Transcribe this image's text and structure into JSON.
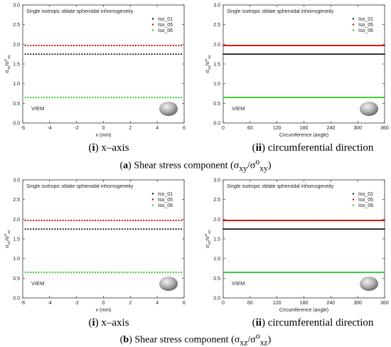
{
  "captions": {
    "a": {
      "label": "a",
      "text": " Shear stress component (σ",
      "sub1": "xy",
      "mid": "/σ",
      "sup": "o",
      "sub2": "xy",
      "end": ")"
    },
    "b": {
      "label": "b",
      "text": " Shear stress component (σ",
      "sub1": "xz",
      "mid": "/σ",
      "sup": "o",
      "sub2": "xz",
      "end": ")"
    },
    "sub_i": {
      "label": "i",
      "text": " x–axis"
    },
    "sub_ii": {
      "label": "ii",
      "text": " circumferential direction"
    }
  },
  "chart_data": [
    {
      "id": "a-i",
      "type": "scatter",
      "title": "Single isotropic oblate spheroidal inhomogeneity",
      "xlabel": "x (mm)",
      "ylabel_main": "σ",
      "ylabel_sub": "xy",
      "ylabel_mid": "/σ",
      "ylabel_sup": "o",
      "ylabel_sub2": "xy",
      "xlim": [
        -6,
        6
      ],
      "ylim": [
        0.0,
        3.0
      ],
      "xticks": [
        "-6",
        "-4",
        "-2",
        "0",
        "2",
        "4",
        "6"
      ],
      "yticks": [
        "0.0",
        "0.5",
        "1.0",
        "1.5",
        "2.0",
        "2.5",
        "3.0"
      ],
      "annotation": "VIEM",
      "legend_position": "top-right",
      "series": [
        {
          "name": "Iso_01",
          "color": "#1a1a1a",
          "y": 1.75,
          "x_range": [
            -5.8,
            5.8
          ],
          "count": 59
        },
        {
          "name": "Iso_05",
          "color": "#d00000",
          "y": 1.97,
          "x_range": [
            -5.8,
            5.8
          ],
          "count": 59
        },
        {
          "name": "Iso_06",
          "color": "#22cc22",
          "y": 0.65,
          "x_range": [
            -5.8,
            5.8
          ],
          "count": 59
        }
      ]
    },
    {
      "id": "a-ii",
      "type": "scatter",
      "title": "Single isotropic oblate spheroidal inhomogeneity",
      "xlabel": "Circumference (angle)",
      "ylabel_main": "σ",
      "ylabel_sub": "xy",
      "ylabel_mid": "/σ",
      "ylabel_sup": "o",
      "ylabel_sub2": "xy",
      "xlim": [
        0,
        360
      ],
      "ylim": [
        0.0,
        3.0
      ],
      "xticks": [
        "0",
        "60",
        "120",
        "180",
        "240",
        "300",
        "360"
      ],
      "yticks": [
        "0.0",
        "0.5",
        "1.0",
        "1.5",
        "2.0",
        "2.5",
        "3.0"
      ],
      "annotation": "VIEM",
      "legend_position": "top-right",
      "series": [
        {
          "name": "Iso_01",
          "color": "#1a1a1a",
          "y": 1.75,
          "x_range": [
            0,
            360
          ],
          "count": 361
        },
        {
          "name": "Iso_05",
          "color": "#d00000",
          "y": 1.97,
          "x_range": [
            0,
            360
          ],
          "count": 361
        },
        {
          "name": "Iso_06",
          "color": "#22cc22",
          "y": 0.65,
          "x_range": [
            0,
            360
          ],
          "count": 361
        }
      ]
    },
    {
      "id": "b-i",
      "type": "scatter",
      "title": "Single isotropic oblate spheroidal inhomogeneity",
      "xlabel": "x (mm)",
      "ylabel_main": "σ",
      "ylabel_sub": "xz",
      "ylabel_mid": "/σ",
      "ylabel_sup": "o",
      "ylabel_sub2": "xz",
      "xlim": [
        -6,
        6
      ],
      "ylim": [
        0.0,
        3.0
      ],
      "xticks": [
        "-6",
        "-4",
        "-2",
        "0",
        "2",
        "4",
        "6"
      ],
      "yticks": [
        "0.0",
        "0.5",
        "1.0",
        "1.5",
        "2.0",
        "2.5",
        "3.0"
      ],
      "annotation": "VIEM",
      "legend_position": "top-right",
      "series": [
        {
          "name": "Iso_01",
          "color": "#1a1a1a",
          "y": 1.75,
          "x_range": [
            -5.8,
            5.8
          ],
          "count": 59
        },
        {
          "name": "Iso_05",
          "color": "#d00000",
          "y": 1.97,
          "x_range": [
            -5.8,
            5.8
          ],
          "count": 59
        },
        {
          "name": "Iso_06",
          "color": "#22cc22",
          "y": 0.65,
          "x_range": [
            -5.8,
            5.8
          ],
          "count": 59
        }
      ]
    },
    {
      "id": "b-ii",
      "type": "scatter",
      "title": "Single isotropic oblate spheroidal inhomogeneity",
      "xlabel": "Circumference (angle)",
      "ylabel_main": "σ",
      "ylabel_sub": "xz",
      "ylabel_mid": "/σ",
      "ylabel_sup": "o",
      "ylabel_sub2": "xz",
      "xlim": [
        0,
        360
      ],
      "ylim": [
        0.0,
        3.0
      ],
      "xticks": [
        "0",
        "60",
        "120",
        "180",
        "240",
        "300",
        "360"
      ],
      "yticks": [
        "0.0",
        "0.5",
        "1.0",
        "1.5",
        "2.0",
        "2.5",
        "3.0"
      ],
      "annotation": "VIEM",
      "legend_position": "top-right",
      "series": [
        {
          "name": "Iso_01",
          "color": "#1a1a1a",
          "y": 1.75,
          "x_range": [
            0,
            360
          ],
          "count": 361
        },
        {
          "name": "Iso_05",
          "color": "#d00000",
          "y": 1.97,
          "x_range": [
            0,
            360
          ],
          "count": 361
        },
        {
          "name": "Iso_06",
          "color": "#22cc22",
          "y": 0.65,
          "x_range": [
            0,
            360
          ],
          "count": 361
        }
      ]
    }
  ]
}
